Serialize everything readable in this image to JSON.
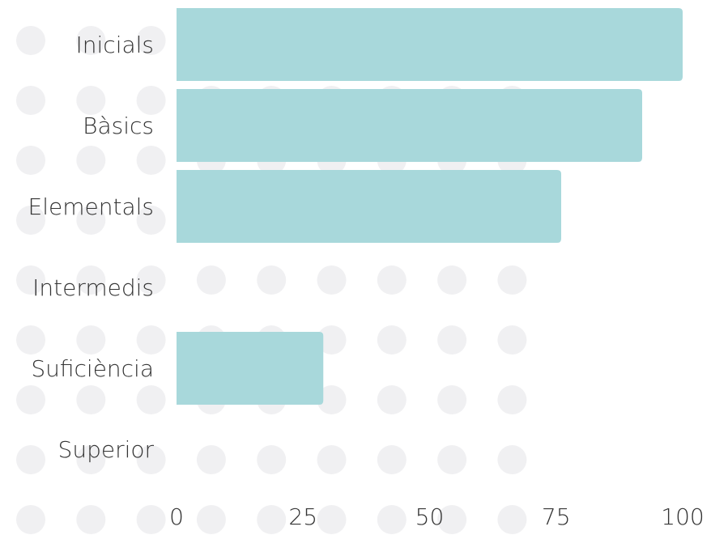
{
  "chart_data": {
    "type": "barh",
    "categories": [
      "Inicials",
      "Bàsics",
      "Elementals",
      "Intermedis",
      "Suficiència",
      "Superior"
    ],
    "values": [
      100,
      92,
      76,
      0,
      29,
      0
    ],
    "color": "#a8d8db",
    "xlim": [
      0,
      100
    ],
    "xticks": [
      0,
      25,
      50,
      75,
      100
    ]
  }
}
